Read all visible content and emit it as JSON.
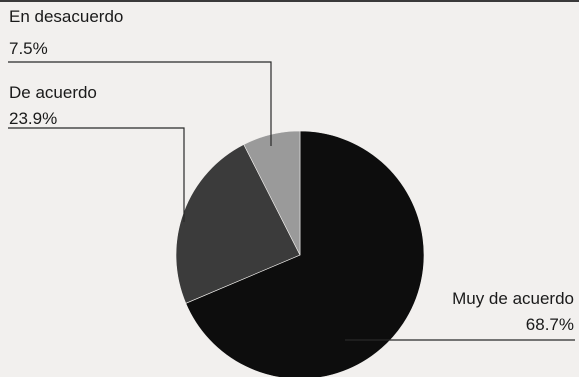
{
  "chart_data": {
    "type": "pie",
    "slices": [
      {
        "label": "Muy de acuerdo",
        "value": 68.7,
        "value_label": "68.7%",
        "color": "#0d0d0d"
      },
      {
        "label": "De acuerdo",
        "value": 23.9,
        "value_label": "23.9%",
        "color": "#3b3b3b"
      },
      {
        "label": "En desacuerdo",
        "value": 7.5,
        "value_label": "7.5%",
        "color": "#9a9a9a"
      }
    ],
    "start_angle_deg": 0,
    "direction": "clockwise",
    "legend": "none"
  }
}
